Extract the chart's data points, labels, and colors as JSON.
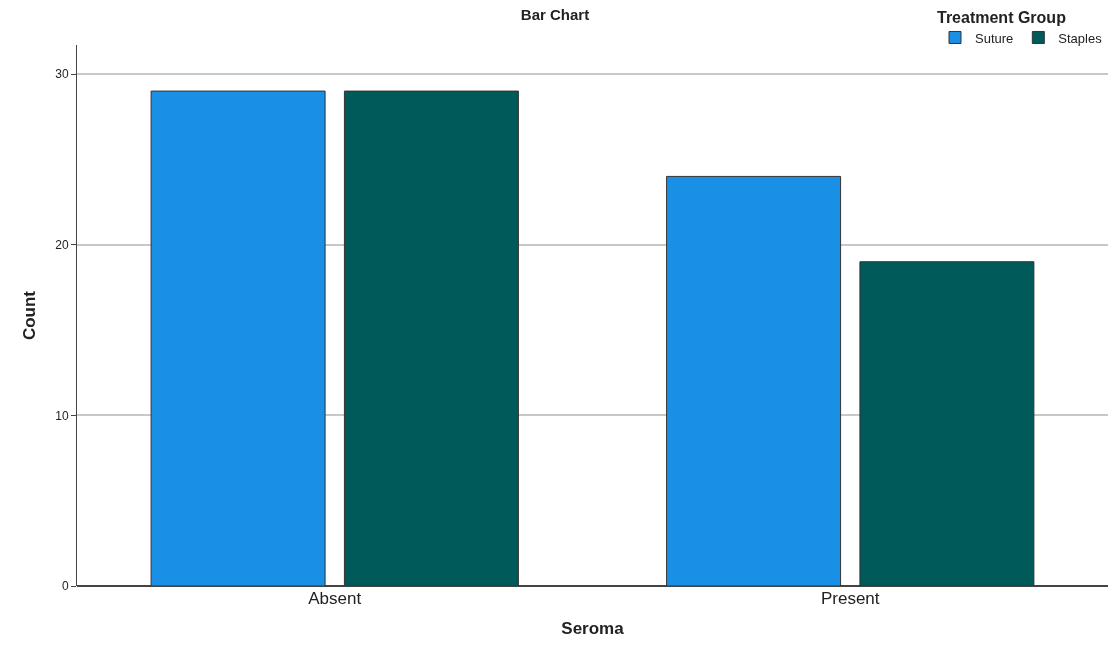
{
  "chart_data": {
    "type": "bar",
    "title": "Bar Chart",
    "xlabel": "Seroma",
    "ylabel": "Count",
    "legend_title": "Treatment Group",
    "categories": [
      "Absent",
      "Present"
    ],
    "series": [
      {
        "name": "Suture",
        "color": "#1a8fe6",
        "values": [
          29,
          24
        ]
      },
      {
        "name": "Staples",
        "color": "#005a5a",
        "values": [
          29,
          19
        ]
      }
    ],
    "ylim": [
      0,
      31.7
    ],
    "yticks": [
      0,
      10,
      20,
      30
    ],
    "grid": "y",
    "legend": "top right"
  }
}
